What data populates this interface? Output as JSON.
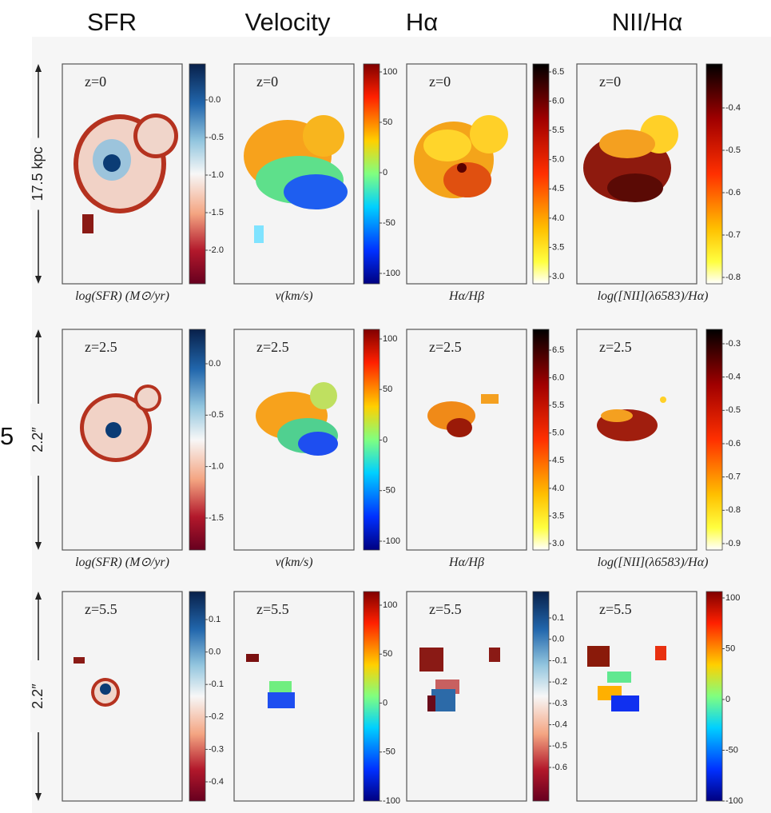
{
  "column_titles": [
    "SFR",
    "Velocity",
    "Hα",
    "NII/Hα"
  ],
  "edge_fragment": "5",
  "rows": [
    {
      "scale_label": "17.5 kpc",
      "panels": [
        {
          "label": "z=0",
          "colorbar_ticks": [
            "0.0",
            "-0.5",
            "-1.0",
            "-1.5",
            "-2.0"
          ],
          "axis_label": "log(SFR) (M⊙/yr)"
        },
        {
          "label": "z=0",
          "colorbar_ticks": [
            "100",
            "50",
            "0",
            "-50",
            "-100"
          ],
          "axis_label": "v(km/s)"
        },
        {
          "label": "z=0",
          "colorbar_ticks": [
            "6.5",
            "6.0",
            "5.5",
            "5.0",
            "4.5",
            "4.0",
            "3.5",
            "3.0"
          ],
          "axis_label": "Hα/Hβ"
        },
        {
          "label": "z=0",
          "colorbar_ticks": [
            "-0.4",
            "-0.5",
            "-0.6",
            "-0.7",
            "-0.8"
          ],
          "axis_label": "log([NII](λ6583)/Hα)"
        }
      ]
    },
    {
      "scale_label": "2.2″",
      "panels": [
        {
          "label": "z=2.5",
          "colorbar_ticks": [
            "0.0",
            "-0.5",
            "-1.0",
            "-1.5"
          ],
          "axis_label": "log(SFR) (M⊙/yr)"
        },
        {
          "label": "z=2.5",
          "colorbar_ticks": [
            "100",
            "50",
            "0",
            "-50",
            "-100"
          ],
          "axis_label": "v(km/s)"
        },
        {
          "label": "z=2.5",
          "colorbar_ticks": [
            "6.5",
            "6.0",
            "5.5",
            "5.0",
            "4.5",
            "4.0",
            "3.5",
            "3.0"
          ],
          "axis_label": "Hα/Hβ"
        },
        {
          "label": "z=2.5",
          "colorbar_ticks": [
            "-0.3",
            "-0.4",
            "-0.5",
            "-0.6",
            "-0.7",
            "-0.8",
            "-0.9"
          ],
          "axis_label": "log([NII](λ6583)/Hα)"
        }
      ]
    },
    {
      "scale_label": "2.2″",
      "panels": [
        {
          "label": "z=5.5",
          "colorbar_ticks": [
            "0.1",
            "0.0",
            "-0.1",
            "-0.2",
            "-0.3",
            "-0.4"
          ]
        },
        {
          "label": "z=5.5",
          "colorbar_ticks": [
            "100",
            "50",
            "0",
            "-50",
            "-100"
          ]
        },
        {
          "label": "z=5.5",
          "colorbar_ticks": [
            "0.1",
            "0.0",
            "-0.1",
            "-0.2",
            "-0.3",
            "-0.4",
            "-0.5",
            "-0.6"
          ]
        },
        {
          "label": "z=5.5",
          "colorbar_ticks": [
            "100",
            "50",
            "0",
            "-50",
            "-100"
          ]
        }
      ]
    }
  ]
}
